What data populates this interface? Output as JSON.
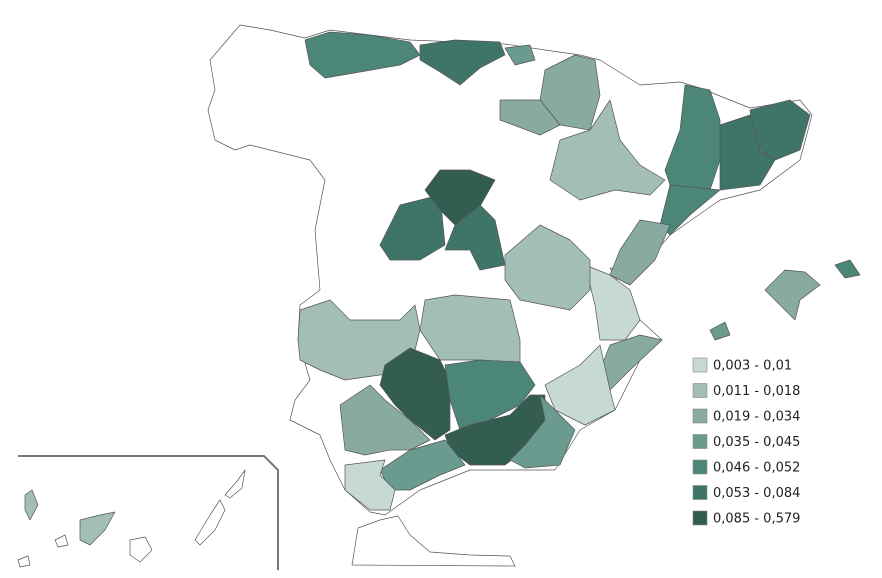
{
  "legend": {
    "items": [
      {
        "label": "0,003 - 0,01",
        "color": "#c6d9d3"
      },
      {
        "label": "0,011 - 0,018",
        "color": "#a3beb6"
      },
      {
        "label": "0,019 - 0,034",
        "color": "#88aaa1"
      },
      {
        "label": "0,035 - 0,045",
        "color": "#6b9a8e"
      },
      {
        "label": "0,046 - 0,052",
        "color": "#4c8679"
      },
      {
        "label": "0,053 - 0,084",
        "color": "#3f7568"
      },
      {
        "label": "0,085 - 0,579",
        "color": "#335d51"
      }
    ]
  }
}
